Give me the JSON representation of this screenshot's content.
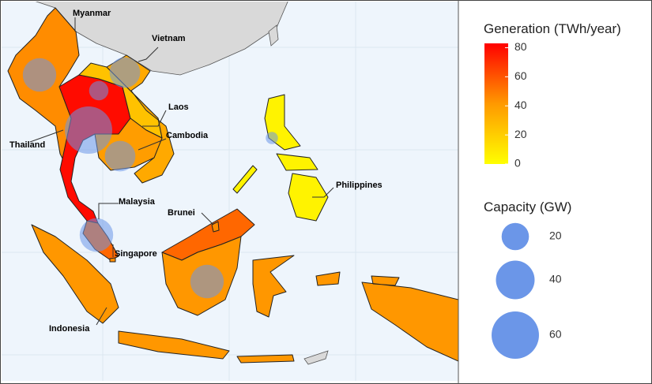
{
  "map": {
    "countries": [
      {
        "name": "Myanmar",
        "generation": 45,
        "capacity": 30
      },
      {
        "name": "Thailand",
        "generation": 80,
        "capacity": 60
      },
      {
        "name": "Laos",
        "generation": 25,
        "capacity": 10
      },
      {
        "name": "Vietnam",
        "generation": 35,
        "capacity": 25
      },
      {
        "name": "Cambodia",
        "generation": 40,
        "capacity": 25
      },
      {
        "name": "Malaysia",
        "generation": 55,
        "capacity": 30
      },
      {
        "name": "Indonesia",
        "generation": 42,
        "capacity": 30
      },
      {
        "name": "Philippines",
        "generation": 5,
        "capacity": 4
      },
      {
        "name": "Brunei",
        "generation": 45
      },
      {
        "name": "Singapore",
        "generation": 45
      }
    ],
    "generation_legend": {
      "title": "Generation (TWh/year)",
      "range": [
        0,
        83
      ],
      "ticks": [
        0,
        20,
        40,
        60,
        80
      ],
      "colors": [
        "#ffff00",
        "#ff9900",
        "#ff0000"
      ]
    },
    "capacity_legend": {
      "title": "Capacity (GW)",
      "sizes": [
        20,
        40,
        60
      ],
      "color": "#6b96e8"
    }
  }
}
